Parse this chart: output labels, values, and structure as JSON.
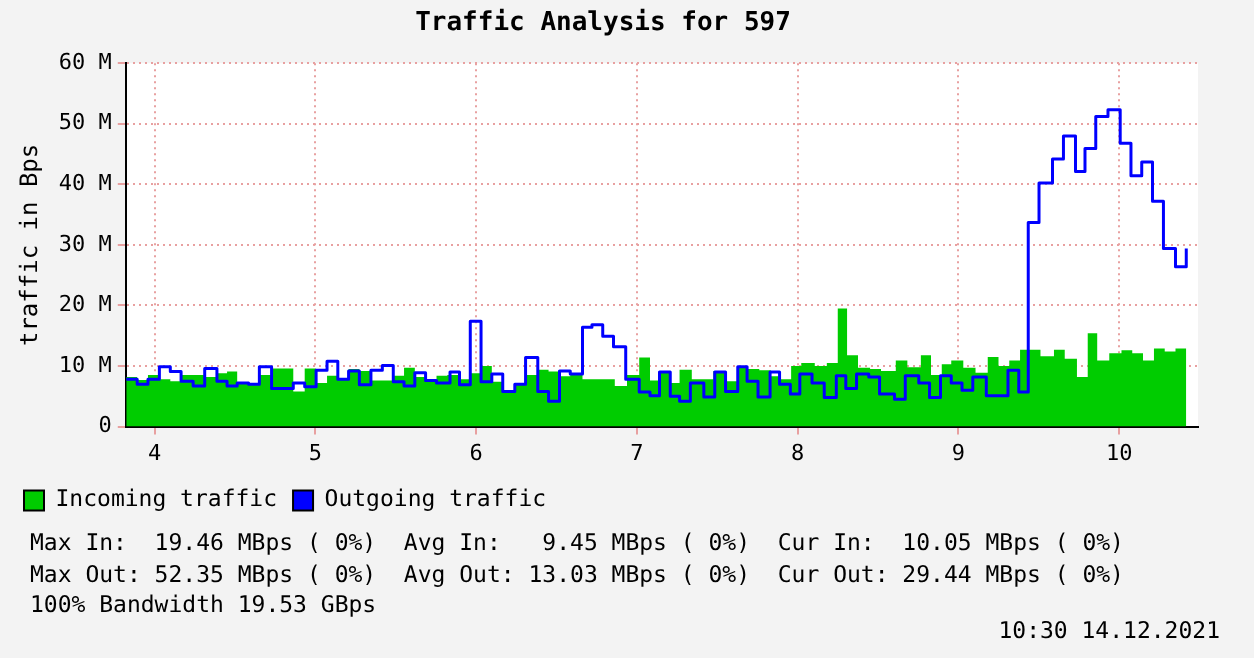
{
  "chart_data": {
    "type": "area",
    "title": "Traffic Analysis for 597",
    "ylabel": "traffic in Bps",
    "xlim": [
      3.82,
      10.49
    ],
    "xticks": [
      4,
      5,
      6,
      7,
      8,
      9,
      10
    ],
    "ylim": [
      0,
      60
    ],
    "yticks": [
      0,
      {
        "value": 10,
        "label": "10 M"
      },
      {
        "value": 20,
        "label": "20 M"
      },
      {
        "value": 30,
        "label": "30 M"
      },
      {
        "value": 40,
        "label": "40 M"
      },
      {
        "value": 50,
        "label": "50 M"
      },
      {
        "value": 60,
        "label": "60 M"
      }
    ],
    "grid": true,
    "legend": "bottom",
    "series": [
      {
        "name": "Incoming traffic",
        "type": "area",
        "color": "#00cc00",
        "x": [
          3.823,
          3.891,
          3.958,
          4.029,
          4.097,
          4.164,
          4.311,
          4.387,
          4.45,
          4.513,
          4.651,
          4.727,
          4.862,
          4.933,
          5.004,
          5.072,
          5.139,
          5.206,
          5.273,
          5.345,
          5.484,
          5.551,
          5.618,
          5.685,
          5.753,
          5.82,
          5.896,
          5.963,
          6.03,
          6.097,
          6.165,
          6.24,
          6.307,
          6.383,
          6.45,
          6.518,
          6.585,
          6.661,
          6.862,
          6.938,
          7.014,
          7.081,
          7.14,
          7.207,
          7.265,
          7.341,
          7.475,
          7.551,
          7.627,
          7.685,
          7.761,
          7.832,
          7.895,
          7.959,
          8.022,
          8.106,
          8.181,
          8.249,
          8.307,
          8.375,
          8.45,
          8.518,
          8.61,
          8.682,
          8.766,
          8.829,
          8.896,
          8.955,
          9.03,
          9.106,
          9.182,
          9.249,
          9.316,
          9.383,
          9.51,
          9.594,
          9.661,
          9.737,
          9.804,
          9.863,
          9.938,
          10.014,
          10.081,
          10.148,
          10.216,
          10.283,
          10.35,
          10.417
        ],
        "values": [
          8.2,
          7.7,
          8.5,
          7.8,
          7.5,
          8.5,
          8.2,
          8.8,
          9.1,
          7.2,
          8.5,
          9.6,
          5.8,
          9.6,
          7.2,
          8.4,
          8.0,
          9.5,
          9.2,
          7.6,
          8.4,
          9.7,
          8.2,
          7.4,
          8.4,
          8.5,
          7.8,
          8.8,
          10.0,
          7.4,
          5.7,
          7.1,
          8.5,
          9.4,
          9.1,
          8.3,
          8.5,
          7.8,
          6.7,
          8.5,
          11.4,
          7.6,
          9.0,
          7.2,
          9.4,
          7.8,
          9.2,
          7.5,
          10.0,
          9.5,
          9.3,
          8.3,
          7.8,
          10.0,
          10.5,
          10.0,
          10.5,
          19.5,
          11.8,
          9.7,
          9.5,
          9.2,
          10.9,
          9.8,
          11.8,
          8.5,
          10.3,
          10.9,
          9.7,
          8.9,
          11.5,
          10.0,
          10.9,
          12.7,
          11.6,
          12.7,
          11.2,
          8.2,
          15.4,
          10.9,
          12.1,
          12.6,
          12.1,
          10.9,
          12.9,
          12.4,
          12.9,
          10.0
        ]
      },
      {
        "name": "Outgoing traffic",
        "type": "step",
        "color": "#0000ff",
        "x": [
          3.823,
          3.891,
          3.958,
          4.029,
          4.097,
          4.164,
          4.239,
          4.311,
          4.387,
          4.45,
          4.513,
          4.584,
          4.651,
          4.727,
          4.862,
          4.933,
          5.004,
          5.072,
          5.139,
          5.206,
          5.273,
          5.345,
          5.416,
          5.484,
          5.551,
          5.618,
          5.685,
          5.753,
          5.837,
          5.896,
          5.963,
          6.03,
          6.097,
          6.165,
          6.24,
          6.307,
          6.383,
          6.45,
          6.518,
          6.585,
          6.661,
          6.72,
          6.787,
          6.854,
          6.93,
          7.014,
          7.081,
          7.14,
          7.207,
          7.265,
          7.332,
          7.416,
          7.484,
          7.551,
          7.627,
          7.685,
          7.753,
          7.828,
          7.887,
          7.954,
          8.013,
          8.089,
          8.165,
          8.24,
          8.299,
          8.366,
          8.442,
          8.509,
          8.602,
          8.669,
          8.753,
          8.82,
          8.888,
          8.955,
          9.022,
          9.089,
          9.173,
          9.308,
          9.375,
          9.434,
          9.501,
          9.585,
          9.653,
          9.728,
          9.787,
          9.854,
          9.93,
          10.006,
          10.073,
          10.14,
          10.207,
          10.275,
          10.35,
          10.417
        ],
        "values": [
          7.8,
          7.0,
          7.8,
          9.9,
          9.1,
          7.5,
          6.7,
          9.6,
          7.5,
          6.7,
          7.2,
          7.0,
          9.9,
          6.3,
          7.2,
          6.6,
          9.3,
          10.8,
          7.8,
          9.2,
          6.9,
          9.3,
          10.1,
          7.4,
          6.7,
          8.9,
          7.6,
          7.2,
          9.0,
          6.9,
          17.4,
          7.4,
          8.7,
          5.8,
          7.0,
          11.4,
          5.8,
          4.2,
          9.2,
          8.7,
          16.4,
          16.8,
          14.9,
          13.2,
          7.8,
          5.7,
          5.1,
          9.0,
          5.0,
          4.2,
          7.2,
          4.9,
          9.0,
          5.8,
          9.9,
          7.5,
          4.9,
          9.0,
          7.0,
          5.4,
          8.7,
          7.2,
          4.8,
          8.4,
          6.3,
          8.7,
          8.2,
          5.4,
          4.5,
          8.4,
          7.2,
          4.8,
          8.4,
          7.2,
          6.0,
          8.2,
          5.1,
          9.3,
          5.7,
          33.7,
          40.2,
          44.2,
          48.0,
          42.1,
          45.9,
          51.2,
          52.3,
          46.8,
          41.4,
          43.7,
          37.2,
          29.4,
          26.4,
          29.4
        ]
      }
    ],
    "annotations": [
      "Max In:  19.46 MBps ( 0%)  Avg In:   9.45 MBps ( 0%)  Cur In:  10.05 MBps ( 0%)",
      "Max Out: 52.35 MBps ( 0%)  Avg Out: 13.03 MBps ( 0%)  Cur Out: 29.44 MBps ( 0%)",
      "100% Bandwidth 19.53 GBps",
      "10:30 14.12.2021"
    ]
  }
}
